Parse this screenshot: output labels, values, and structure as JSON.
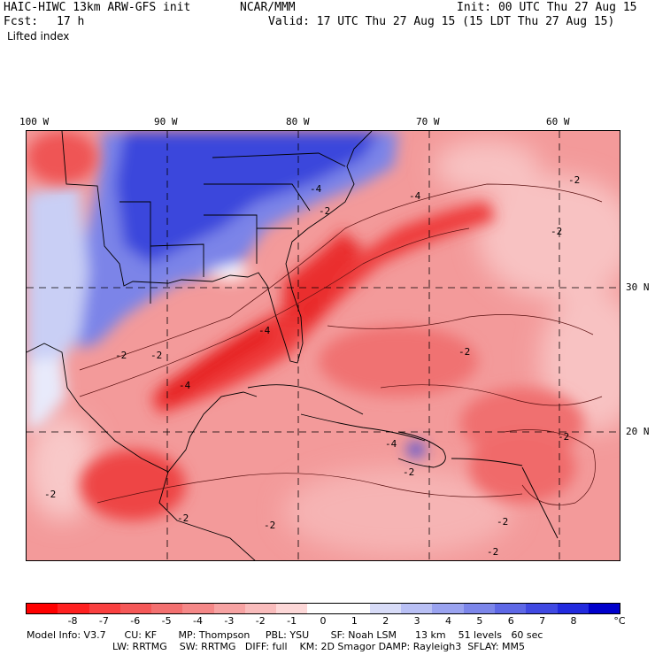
{
  "header": {
    "model_title": "HAIC-HIWC 13km ARW-GFS init",
    "org": "NCAR/MMM",
    "init": "Init: 00 UTC Thu 27 Aug 15",
    "fcst_label": "Fcst:",
    "fcst_value": "17 h",
    "valid": "Valid: 17 UTC Thu 27 Aug 15 (15 LDT Thu 27 Aug 15)",
    "field": "Lifted index"
  },
  "map": {
    "lon_labels": [
      "100 W",
      "90 W",
      "80 W",
      "70 W",
      "60 W"
    ],
    "lat_labels": [
      "30 N",
      "20 N"
    ],
    "contour_labels": [
      "-2",
      "-4",
      "-2",
      "-2",
      "-4",
      "-2",
      "-4",
      "-2",
      "-2",
      "-2",
      "-2",
      "-4",
      "-2",
      "-2",
      "-2",
      "-2",
      "-4",
      "-2"
    ],
    "colors": {
      "strong_positive": "#2a3fe0",
      "weak_positive": "#c9cff5",
      "neutral": "#ffffff",
      "weak_negative": "#f6b4b4",
      "strong_negative": "#ef2626"
    }
  },
  "colorbar": {
    "ticks": [
      "-8",
      "-7",
      "-6",
      "-5",
      "-4",
      "-3",
      "-2",
      "-1",
      "0",
      "1",
      "2",
      "3",
      "4",
      "5",
      "6",
      "7",
      "8"
    ],
    "unit": "°C",
    "colors": [
      "#ff0000",
      "#ff2020",
      "#fa4040",
      "#f55858",
      "#f37070",
      "#f58888",
      "#f7a3a3",
      "#f9bcbc",
      "#fdd8d8",
      "#ffffff",
      "#ffffff",
      "#d8dcf8",
      "#b9c0f5",
      "#9aa3f0",
      "#7c86ea",
      "#5e68e6",
      "#4049e2",
      "#222ade",
      "#0000cc"
    ]
  },
  "footer": {
    "line1": "Model Info: V3.7      CU: KF       MP: Thompson     PBL: YSU       SF: Noah LSM      13 km    51 levels   60 sec",
    "line2": "LW: RRTMG    SW: RRTMG   DIFF: full    KM: 2D Smagor DAMP: Rayleigh3  SFLAY: MM5"
  }
}
